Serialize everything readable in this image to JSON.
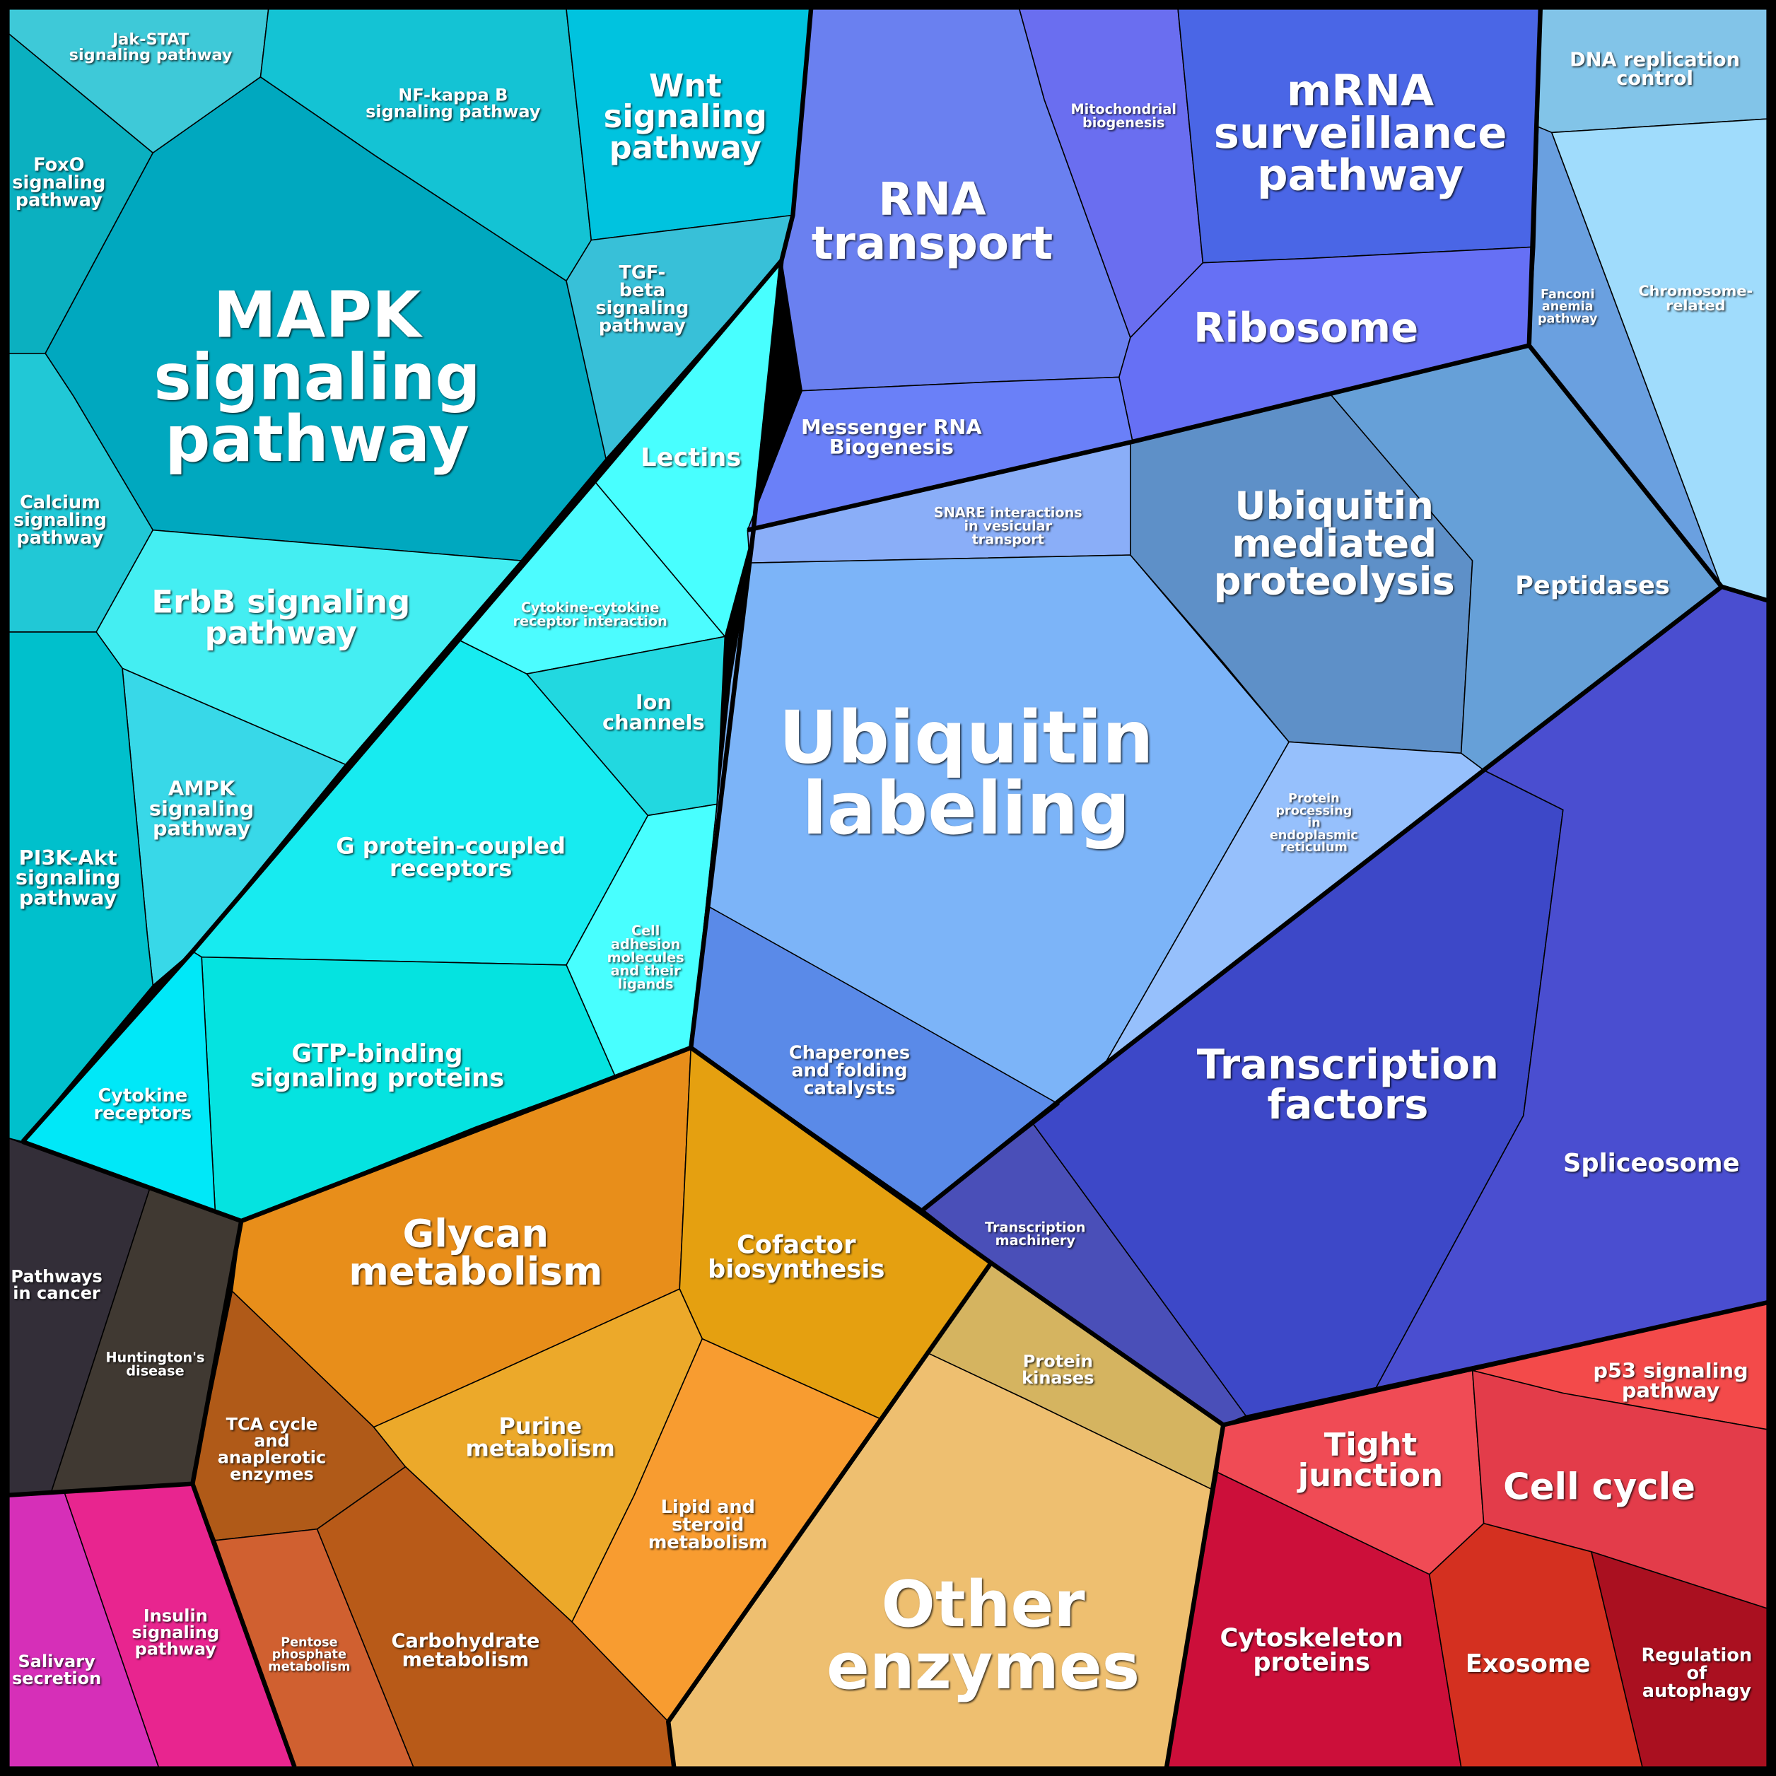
{
  "cells": [
    {
      "lines": [
        "Jak-STAT",
        "signaling pathway"
      ]
    },
    {
      "lines": [
        "NF-kappa B",
        "signaling pathway"
      ]
    },
    {
      "lines": [
        "Wnt",
        "signaling",
        "pathway"
      ]
    },
    {
      "lines": [
        "FoxO",
        "signaling",
        "pathway"
      ]
    },
    {
      "lines": [
        "MAPK",
        "signaling",
        "pathway"
      ]
    },
    {
      "lines": [
        "TGF-",
        "beta",
        "signaling",
        "pathway"
      ]
    },
    {
      "lines": [
        "Calcium",
        "signaling",
        "pathway"
      ]
    },
    {
      "lines": [
        "ErbB signaling",
        "pathway"
      ]
    },
    {
      "lines": [
        "AMPK",
        "signaling",
        "pathway"
      ]
    },
    {
      "lines": [
        "PI3K-Akt",
        "signaling",
        "pathway"
      ]
    },
    {
      "lines": [
        "Lectins"
      ]
    },
    {
      "lines": [
        "Cytokine-cytokine",
        "receptor interaction"
      ]
    },
    {
      "lines": [
        "Ion",
        "channels"
      ]
    },
    {
      "lines": [
        "G protein-coupled",
        "receptors"
      ]
    },
    {
      "lines": [
        "Cell",
        "adhesion",
        "molecules",
        "and their",
        "ligands"
      ]
    },
    {
      "lines": [
        "GTP-binding",
        "signaling proteins"
      ]
    },
    {
      "lines": [
        "Cytokine",
        "receptors"
      ]
    },
    {
      "lines": [
        "Pathways",
        "in cancer"
      ]
    },
    {
      "lines": [
        "Huntington's",
        "disease"
      ]
    },
    {
      "lines": [
        "Salivary",
        "secretion"
      ]
    },
    {
      "lines": [
        "Insulin",
        "signaling",
        "pathway"
      ]
    },
    {
      "lines": [
        "Glycan",
        "metabolism"
      ]
    },
    {
      "lines": [
        "Cofactor",
        "biosynthesis"
      ]
    },
    {
      "lines": [
        "TCA cycle",
        "and",
        "anaplerotic",
        "enzymes"
      ]
    },
    {
      "lines": [
        "Purine",
        "metabolism"
      ]
    },
    {
      "lines": [
        "Lipid and",
        "steroid",
        "metabolism"
      ]
    },
    {
      "lines": [
        "Pentose",
        "phosphate",
        "metabolism"
      ]
    },
    {
      "lines": [
        "Carbohydrate",
        "metabolism"
      ]
    },
    {
      "lines": [
        "Protein",
        "kinases"
      ]
    },
    {
      "lines": [
        "Other",
        "enzymes"
      ]
    },
    {
      "lines": [
        "Tight",
        "junction"
      ]
    },
    {
      "lines": [
        "p53 signaling",
        "pathway"
      ]
    },
    {
      "lines": [
        "Cell cycle"
      ]
    },
    {
      "lines": [
        "Cytoskeleton",
        "proteins"
      ]
    },
    {
      "lines": [
        "Exosome"
      ]
    },
    {
      "lines": [
        "Regulation",
        "of",
        "autophagy"
      ]
    },
    {
      "lines": [
        "Transcription",
        "machinery"
      ]
    },
    {
      "lines": [
        "Transcription",
        "factors"
      ]
    },
    {
      "lines": [
        "Spliceosome"
      ]
    },
    {
      "lines": [
        "SNARE interactions",
        "in vesicular",
        "transport"
      ]
    },
    {
      "lines": [
        "Ubiquitin",
        "labeling"
      ]
    },
    {
      "lines": [
        "Chaperones",
        "and folding",
        "catalysts"
      ]
    },
    {
      "lines": [
        "Ubiquitin",
        "mediated",
        "proteolysis"
      ]
    },
    {
      "lines": [
        "Peptidases"
      ]
    },
    {
      "lines": [
        "Protein",
        "processing",
        "in",
        "endoplasmic",
        "reticulum"
      ]
    },
    {
      "lines": [
        "RNA",
        "transport"
      ]
    },
    {
      "lines": [
        "Mitochondrial",
        "biogenesis"
      ]
    },
    {
      "lines": [
        "mRNA",
        "surveillance",
        "pathway"
      ]
    },
    {
      "lines": [
        "Ribosome"
      ]
    },
    {
      "lines": [
        "Messenger RNA",
        "Biogenesis"
      ]
    },
    {
      "lines": [
        "DNA replication",
        "control"
      ]
    },
    {
      "lines": [
        "Fanconi",
        "anemia",
        "pathway"
      ]
    },
    {
      "lines": [
        "Chromosome-",
        "related"
      ]
    }
  ]
}
